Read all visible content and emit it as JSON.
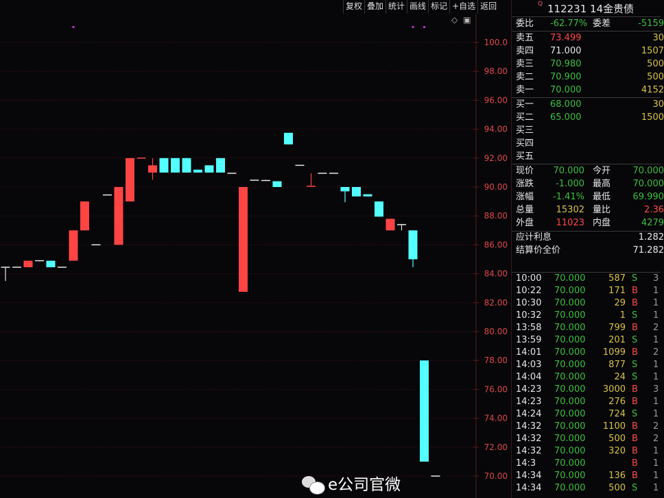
{
  "toolbar": [
    "复权",
    "叠加",
    "统计",
    "画线",
    "标记",
    "+自选",
    "返回"
  ],
  "corner_icons": [
    "diamond-icon",
    "panel-toggle-icon"
  ],
  "header": {
    "badge": "Q",
    "title": "112231 14金贵债"
  },
  "commission": {
    "ratio_label": "委比",
    "ratio": "-62.77%",
    "diff_label": "委差",
    "diff": "-5159"
  },
  "asks": [
    {
      "label": "卖五",
      "price": "73.499",
      "vol": "30",
      "price_color": "r"
    },
    {
      "label": "卖四",
      "price": "71.000",
      "vol": "1507",
      "price_color": "w"
    },
    {
      "label": "卖三",
      "price": "70.980",
      "vol": "500",
      "price_color": "g"
    },
    {
      "label": "卖二",
      "price": "70.900",
      "vol": "500",
      "price_color": "g"
    },
    {
      "label": "卖一",
      "price": "70.000",
      "vol": "4152",
      "price_color": "g"
    }
  ],
  "bids": [
    {
      "label": "买一",
      "price": "68.000",
      "vol": "30"
    },
    {
      "label": "买二",
      "price": "65.000",
      "vol": "1500"
    },
    {
      "label": "买三",
      "price": "",
      "vol": ""
    },
    {
      "label": "买四",
      "price": "",
      "vol": ""
    },
    {
      "label": "买五",
      "price": "",
      "vol": ""
    }
  ],
  "stats": [
    {
      "l1": "现价",
      "v1": "70.000",
      "c1": "g",
      "l2": "今开",
      "v2": "70.000",
      "c2": "g"
    },
    {
      "l1": "涨跌",
      "v1": "-1.000",
      "c1": "g",
      "l2": "最高",
      "v2": "70.000",
      "c2": "g"
    },
    {
      "l1": "涨幅",
      "v1": "-1.41%",
      "c1": "g",
      "l2": "最低",
      "v2": "69.990",
      "c2": "g"
    },
    {
      "l1": "总量",
      "v1": "15302",
      "c1": "y",
      "l2": "量比",
      "v2": "2.36",
      "c2": "r"
    },
    {
      "l1": "外盘",
      "v1": "11023",
      "c1": "r",
      "l2": "内盘",
      "v2": "4279",
      "c2": "g"
    }
  ],
  "interest": [
    {
      "label": "应计利息",
      "value": "1.282"
    },
    {
      "label": "结算价全价",
      "value": "71.282"
    }
  ],
  "trades": [
    {
      "t": "10:00",
      "p": "70.000",
      "v": "587",
      "s": "S",
      "n": "3"
    },
    {
      "t": "10:22",
      "p": "70.000",
      "v": "171",
      "s": "B",
      "n": "1"
    },
    {
      "t": "10:30",
      "p": "70.000",
      "v": "29",
      "s": "B",
      "n": "1"
    },
    {
      "t": "10:32",
      "p": "70.000",
      "v": "1",
      "s": "S",
      "n": "1"
    },
    {
      "t": "13:58",
      "p": "70.000",
      "v": "799",
      "s": "B",
      "n": "2"
    },
    {
      "t": "13:59",
      "p": "70.000",
      "v": "201",
      "s": "S",
      "n": "1"
    },
    {
      "t": "14:01",
      "p": "70.000",
      "v": "1099",
      "s": "B",
      "n": "2"
    },
    {
      "t": "14:03",
      "p": "70.000",
      "v": "877",
      "s": "S",
      "n": "1"
    },
    {
      "t": "14:04",
      "p": "70.000",
      "v": "24",
      "s": "S",
      "n": "1"
    },
    {
      "t": "14:23",
      "p": "70.000",
      "v": "3000",
      "s": "B",
      "n": "3"
    },
    {
      "t": "14:23",
      "p": "70.000",
      "v": "276",
      "s": "B",
      "n": "1"
    },
    {
      "t": "14:24",
      "p": "70.000",
      "v": "724",
      "s": "S",
      "n": "1"
    },
    {
      "t": "14:32",
      "p": "70.000",
      "v": "1100",
      "s": "B",
      "n": "2"
    },
    {
      "t": "14:32",
      "p": "70.000",
      "v": "500",
      "s": "B",
      "n": "2"
    },
    {
      "t": "14:32",
      "p": "70.000",
      "v": "320",
      "s": "B",
      "n": "1"
    },
    {
      "t": "14:3",
      "p": "70.000",
      "v": "",
      "s": "B",
      "n": "1"
    },
    {
      "t": "14:34",
      "p": "70.000",
      "v": "136",
      "s": "B",
      "n": "1"
    },
    {
      "t": "14:34",
      "p": "70.000",
      "v": "500",
      "s": "S",
      "n": "1"
    }
  ],
  "watermark": "e公司官微",
  "colors": {
    "up": "#ff4444",
    "down": "#54ffff",
    "flat": "#e8e8e8",
    "grid": "#5a1414",
    "axis_text": "#e04848",
    "marker": "#c030c0"
  },
  "chart_data": {
    "type": "candlestick",
    "ylim": [
      69.5,
      101
    ],
    "yticks": [
      "100.0",
      "98.00",
      "96.00",
      "94.00",
      "92.00",
      "90.00",
      "88.00",
      "86.00",
      "84.00",
      "82.00",
      "80.00",
      "78.00",
      "76.00",
      "74.00",
      "72.00",
      "70.00"
    ],
    "grid": true,
    "candles": [
      {
        "o": 84.45,
        "h": 84.45,
        "l": 83.5,
        "c": 84.45
      },
      {
        "o": 84.45,
        "h": 84.45,
        "l": 84.45,
        "c": 84.45
      },
      {
        "o": 84.45,
        "h": 84.9,
        "l": 84.45,
        "c": 84.9
      },
      {
        "o": 84.9,
        "h": 84.9,
        "l": 84.9,
        "c": 84.9
      },
      {
        "o": 84.9,
        "h": 84.9,
        "l": 84.45,
        "c": 84.45
      },
      {
        "o": 84.45,
        "h": 84.45,
        "l": 84.45,
        "c": 84.45
      },
      {
        "o": 84.9,
        "h": 87.0,
        "l": 84.9,
        "c": 87.0
      },
      {
        "o": 87.0,
        "h": 89.0,
        "l": 87.0,
        "c": 89.0
      },
      {
        "o": 86.0,
        "h": 86.0,
        "l": 86.0,
        "c": 86.0
      },
      {
        "o": 89.45,
        "h": 89.45,
        "l": 89.45,
        "c": 89.45
      },
      {
        "o": 86.0,
        "h": 90.0,
        "l": 86.0,
        "c": 90.0
      },
      {
        "o": 89.0,
        "h": 92.0,
        "l": 89.0,
        "c": 92.0
      },
      {
        "o": 92.0,
        "h": 92.0,
        "l": 92.0,
        "c": 92.0,
        "up": true
      },
      {
        "o": 91.0,
        "h": 92.0,
        "l": 90.5,
        "c": 91.5
      },
      {
        "o": 92.0,
        "h": 92.0,
        "l": 91.0,
        "c": 91.0
      },
      {
        "o": 92.0,
        "h": 92.0,
        "l": 91.0,
        "c": 91.0
      },
      {
        "o": 92.0,
        "h": 92.0,
        "l": 91.0,
        "c": 91.0
      },
      {
        "o": 91.2,
        "h": 91.2,
        "l": 91.0,
        "c": 91.0
      },
      {
        "o": 91.5,
        "h": 91.5,
        "l": 91.0,
        "c": 91.0
      },
      {
        "o": 92.0,
        "h": 92.0,
        "l": 91.0,
        "c": 91.0
      },
      {
        "o": 90.95,
        "h": 90.95,
        "l": 90.95,
        "c": 90.95
      },
      {
        "o": 82.75,
        "h": 90.0,
        "l": 82.75,
        "c": 90.0
      },
      {
        "o": 90.47,
        "h": 90.47,
        "l": 90.47,
        "c": 90.47
      },
      {
        "o": 90.45,
        "h": 90.5,
        "l": 90.45,
        "c": 90.45
      },
      {
        "o": 90.4,
        "h": 90.4,
        "l": 90.0,
        "c": 90.0
      },
      {
        "o": 93.75,
        "h": 93.75,
        "l": 92.95,
        "c": 92.95
      },
      {
        "o": 91.5,
        "h": 91.5,
        "l": 91.5,
        "c": 91.5
      },
      {
        "o": 90.05,
        "h": 90.95,
        "l": 90.05,
        "c": 90.05,
        "up": true
      },
      {
        "o": 90.95,
        "h": 90.95,
        "l": 90.95,
        "c": 90.95
      },
      {
        "o": 90.95,
        "h": 90.95,
        "l": 90.95,
        "c": 90.95
      },
      {
        "o": 90.0,
        "h": 90.0,
        "l": 88.95,
        "c": 89.7
      },
      {
        "o": 90.0,
        "h": 90.0,
        "l": 89.35,
        "c": 89.35
      },
      {
        "o": 89.5,
        "h": 89.5,
        "l": 89.35,
        "c": 89.35
      },
      {
        "o": 89.0,
        "h": 89.0,
        "l": 87.95,
        "c": 87.95
      },
      {
        "o": 87.0,
        "h": 87.8,
        "l": 87.0,
        "c": 87.8
      },
      {
        "o": 87.4,
        "h": 87.4,
        "l": 87.0,
        "c": 87.4
      },
      {
        "o": 87.0,
        "h": 87.0,
        "l": 84.45,
        "c": 85.0
      },
      {
        "o": 78.0,
        "h": 78.0,
        "l": 71.0,
        "c": 71.0
      },
      {
        "o": 70.0,
        "h": 70.0,
        "l": 70.0,
        "c": 70.0
      }
    ],
    "markers_at_candles": [
      6,
      36,
      37
    ]
  }
}
